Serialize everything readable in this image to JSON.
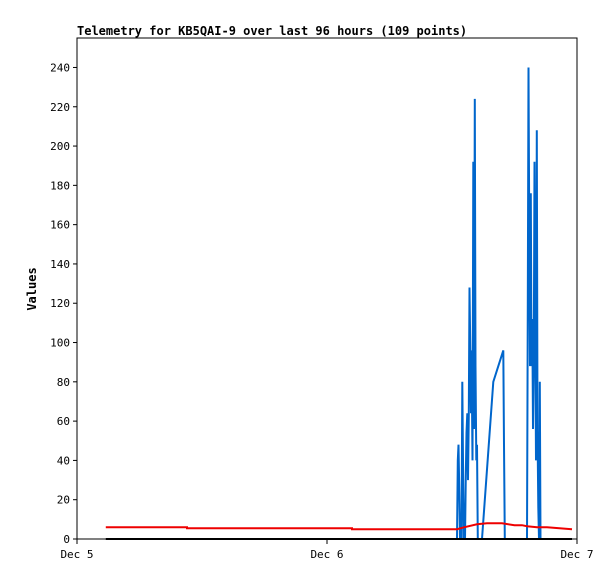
{
  "chart_data": {
    "type": "line",
    "title": "Telemetry for KB5QAI-9 over last 96 hours (109 points)",
    "xlabel": "",
    "ylabel": "Values",
    "xlim": [
      0,
      2
    ],
    "ylim": [
      0,
      255
    ],
    "x_ticks": [
      {
        "value": 0,
        "label": "Dec 5"
      },
      {
        "value": 1,
        "label": "Dec 6"
      },
      {
        "value": 2,
        "label": "Dec 7"
      }
    ],
    "y_ticks": [
      0,
      20,
      40,
      60,
      80,
      100,
      120,
      140,
      160,
      180,
      200,
      220,
      240
    ],
    "grid": false,
    "legend": "none",
    "colors": {
      "blue": "#0066cc",
      "red": "#ee0000",
      "black": "#000000"
    },
    "series": [
      {
        "color": "#0066cc",
        "points": [
          [
            1.52,
            0
          ],
          [
            1.523,
            40
          ],
          [
            1.526,
            48
          ],
          [
            1.529,
            24
          ],
          [
            1.532,
            0
          ],
          [
            1.538,
            0
          ],
          [
            1.541,
            80
          ],
          [
            1.544,
            40
          ],
          [
            1.547,
            0
          ],
          [
            1.552,
            0
          ],
          [
            1.555,
            32
          ],
          [
            1.558,
            54
          ],
          [
            1.561,
            64
          ],
          [
            1.564,
            30
          ],
          [
            1.567,
            64
          ],
          [
            1.57,
            128
          ],
          [
            1.573,
            96
          ],
          [
            1.576,
            64
          ],
          [
            1.578,
            96
          ],
          [
            1.582,
            40
          ],
          [
            1.585,
            192
          ],
          [
            1.588,
            56
          ],
          [
            1.591,
            224
          ],
          [
            1.594,
            88
          ],
          [
            1.597,
            40
          ],
          [
            1.6,
            48
          ],
          [
            1.603,
            0
          ],
          [
            1.606,
            0
          ],
          [
            1.62,
            0
          ],
          [
            1.665,
            80
          ],
          [
            1.705,
            96
          ],
          [
            1.708,
            48
          ],
          [
            1.711,
            0
          ],
          [
            1.8,
            0
          ],
          [
            1.803,
            120
          ],
          [
            1.806,
            240
          ],
          [
            1.809,
            152
          ],
          [
            1.812,
            88
          ],
          [
            1.815,
            176
          ],
          [
            1.818,
            88
          ],
          [
            1.821,
            112
          ],
          [
            1.824,
            56
          ],
          [
            1.827,
            96
          ],
          [
            1.83,
            192
          ],
          [
            1.833,
            104
          ],
          [
            1.836,
            40
          ],
          [
            1.839,
            208
          ],
          [
            1.842,
            56
          ],
          [
            1.845,
            16
          ],
          [
            1.848,
            0
          ],
          [
            1.851,
            80
          ],
          [
            1.854,
            0
          ],
          [
            1.857,
            0
          ]
        ]
      },
      {
        "color": "#ee0000",
        "points": [
          [
            0.115,
            6
          ],
          [
            0.44,
            6
          ],
          [
            0.44,
            5.5
          ],
          [
            1.1,
            5.5
          ],
          [
            1.1,
            5
          ],
          [
            1.52,
            5
          ],
          [
            1.55,
            6
          ],
          [
            1.6,
            7.5
          ],
          [
            1.64,
            8
          ],
          [
            1.7,
            8
          ],
          [
            1.75,
            7
          ],
          [
            1.78,
            7
          ],
          [
            1.8,
            6.5
          ],
          [
            1.84,
            6
          ],
          [
            1.88,
            6
          ],
          [
            1.98,
            5
          ]
        ]
      },
      {
        "color": "#000000",
        "points": [
          [
            0.115,
            0
          ],
          [
            1.98,
            0
          ]
        ]
      }
    ]
  }
}
